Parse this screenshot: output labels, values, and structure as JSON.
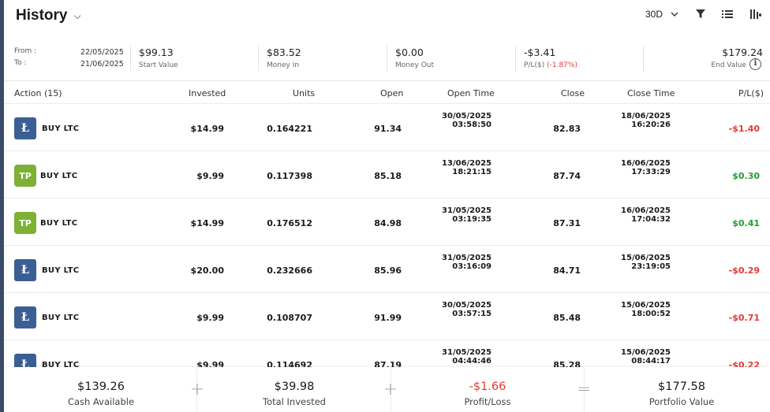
{
  "header": {
    "title": "History",
    "period": "30D",
    "icons": [
      "filter-icon",
      "list-icon",
      "columns-icon"
    ]
  },
  "summary": {
    "from_label": "From :",
    "to_label": "To :",
    "from_date": "22/05/2025",
    "to_date": "21/06/2025",
    "start_value": "$99.13",
    "start_value_label": "Start Value",
    "money_in": "$83.52",
    "money_in_label": "Money In",
    "money_out": "$0.00",
    "money_out_label": "Money Out",
    "pl_value": "-$3.41",
    "pl_label": "P/L($)",
    "pl_pct": "(-1.87%)",
    "end_value": "$179.24",
    "end_value_label": "End Value"
  },
  "table": {
    "headers": {
      "action": "Action (15)",
      "invested": "Invested",
      "units": "Units",
      "open": "Open",
      "open_time": "Open Time",
      "close": "Close",
      "close_time": "Close Time",
      "pl": "P/L($)"
    },
    "rows": [
      {
        "icon": "ltc",
        "action": "BUY LTC",
        "invested": "$14.99",
        "units": "0.164221",
        "open": "91.34",
        "open_date": "30/05/2025",
        "open_time": "03:58:50",
        "close": "82.83",
        "close_date": "18/06/2025",
        "close_time": "16:20:26",
        "pl": "-$1.40",
        "pl_sign": "neg"
      },
      {
        "icon": "tp",
        "action": "BUY LTC",
        "invested": "$9.99",
        "units": "0.117398",
        "open": "85.18",
        "open_date": "13/06/2025",
        "open_time": "18:21:15",
        "close": "87.74",
        "close_date": "16/06/2025",
        "close_time": "17:33:29",
        "pl": "$0.30",
        "pl_sign": "pos"
      },
      {
        "icon": "tp",
        "action": "BUY LTC",
        "invested": "$14.99",
        "units": "0.176512",
        "open": "84.98",
        "open_date": "31/05/2025",
        "open_time": "03:19:35",
        "close": "87.31",
        "close_date": "16/06/2025",
        "close_time": "17:04:32",
        "pl": "$0.41",
        "pl_sign": "pos"
      },
      {
        "icon": "ltc",
        "action": "BUY LTC",
        "invested": "$20.00",
        "units": "0.232666",
        "open": "85.96",
        "open_date": "31/05/2025",
        "open_time": "03:16:09",
        "close": "84.71",
        "close_date": "15/06/2025",
        "close_time": "23:19:05",
        "pl": "-$0.29",
        "pl_sign": "neg"
      },
      {
        "icon": "ltc",
        "action": "BUY LTC",
        "invested": "$9.99",
        "units": "0.108707",
        "open": "91.99",
        "open_date": "30/05/2025",
        "open_time": "03:57:15",
        "close": "85.48",
        "close_date": "15/06/2025",
        "close_time": "18:00:52",
        "pl": "-$0.71",
        "pl_sign": "neg"
      },
      {
        "icon": "ltc",
        "action": "BUY LTC",
        "invested": "$9.99",
        "units": "0.114692",
        "open": "87.19",
        "open_date": "31/05/2025",
        "open_time": "04:44:46",
        "close": "85.28",
        "close_date": "15/06/2025",
        "close_time": "08:44:17",
        "pl": "-$0.22",
        "pl_sign": "neg"
      }
    ]
  },
  "footer": {
    "cash_available": "$139.26",
    "cash_available_label": "Cash Available",
    "plus1": "+",
    "total_invested": "$39.98",
    "total_invested_label": "Total Invested",
    "plus2": "+",
    "profit_loss": "-$1.66",
    "profit_loss_label": "Profit/Loss",
    "equals": "=",
    "portfolio_value": "$177.58",
    "portfolio_value_label": "Portfolio Value"
  },
  "colors": {
    "positive": "#1fa12f",
    "negative": "#e53935",
    "ltc_badge": "#3b5f94",
    "tp_badge": "#7cb133",
    "sidebar": "#3c4a6b"
  }
}
